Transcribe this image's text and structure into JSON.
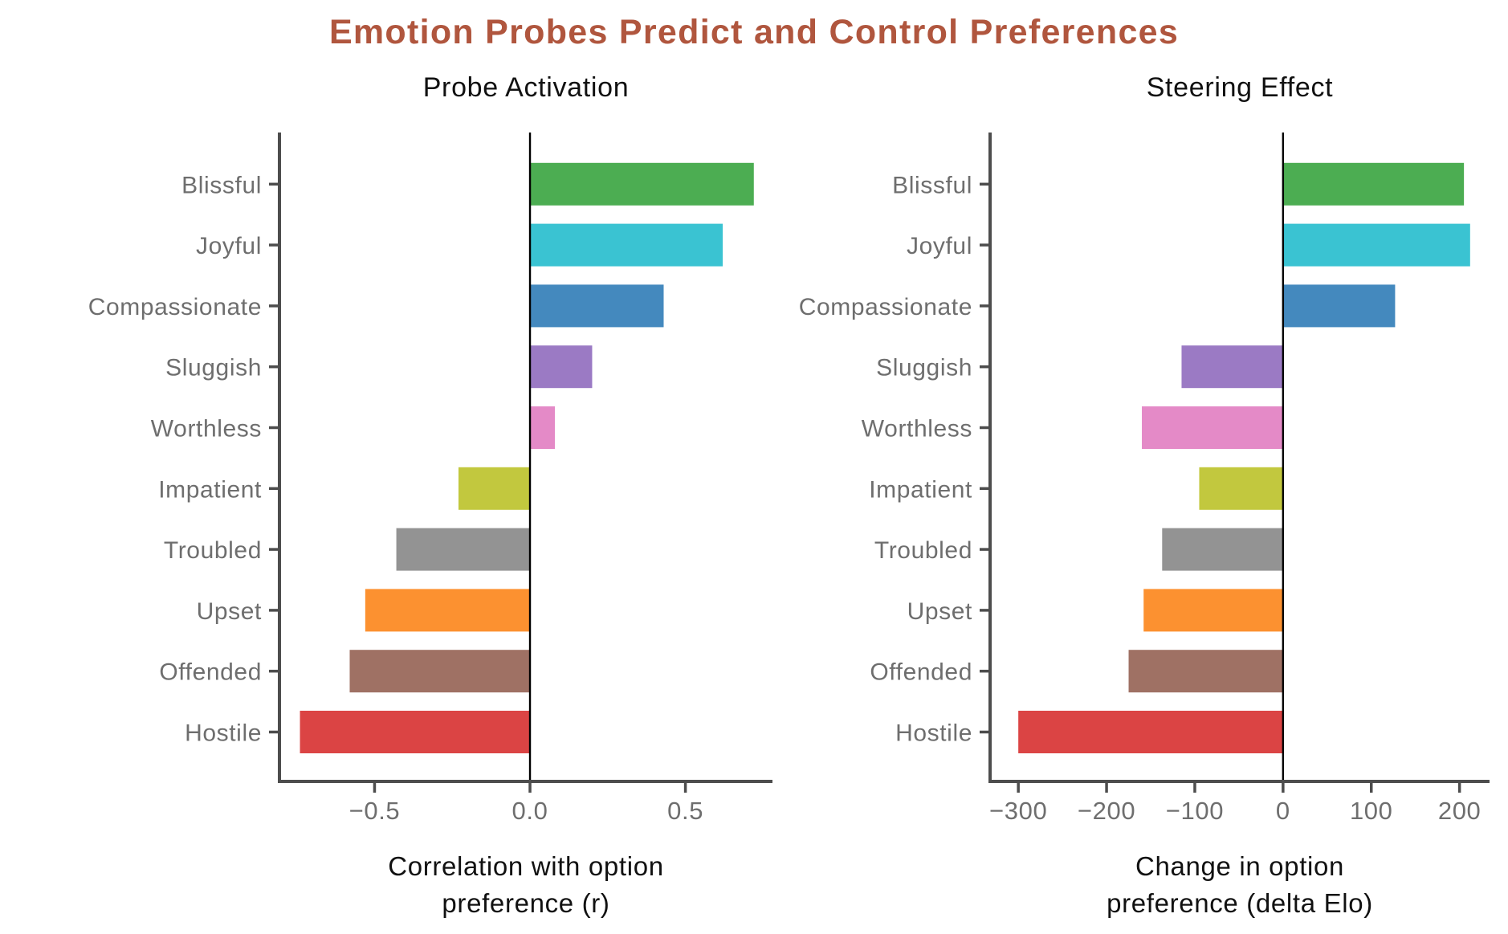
{
  "title": {
    "text": "Emotion Probes Predict and Control Preferences",
    "color": "#B0563E"
  },
  "chart_data": [
    {
      "type": "bar",
      "orientation": "horizontal",
      "title": "Probe Activation",
      "xlabel_lines": [
        "Correlation with option",
        "preference (r)"
      ],
      "xlabel": "Correlation with option preference (r)",
      "categories": [
        "Blissful",
        "Joyful",
        "Compassionate",
        "Sluggish",
        "Worthless",
        "Impatient",
        "Troubled",
        "Upset",
        "Offended",
        "Hostile"
      ],
      "values": [
        0.72,
        0.62,
        0.43,
        0.2,
        0.08,
        -0.23,
        -0.43,
        -0.53,
        -0.58,
        -0.74
      ],
      "xlim": [
        -0.806,
        0.78
      ],
      "xticks": [
        {
          "v": -0.5,
          "label": "−0.5"
        },
        {
          "v": 0.0,
          "label": "0.0"
        },
        {
          "v": 0.5,
          "label": "0.5"
        }
      ],
      "zero_line": true,
      "grid": false,
      "legend": "none"
    },
    {
      "type": "bar",
      "orientation": "horizontal",
      "title": "Steering Effect",
      "xlabel_lines": [
        "Change in option",
        "preference (delta Elo)"
      ],
      "xlabel": "Change in option preference (delta Elo)",
      "categories": [
        "Blissful",
        "Joyful",
        "Compassionate",
        "Sluggish",
        "Worthless",
        "Impatient",
        "Troubled",
        "Upset",
        "Offended",
        "Hostile"
      ],
      "values": [
        205,
        212,
        127,
        -115,
        -160,
        -95,
        -137,
        -158,
        -175,
        -300
      ],
      "xlim": [
        -332,
        234
      ],
      "xticks": [
        {
          "v": -300,
          "label": "−300"
        },
        {
          "v": -200,
          "label": "−200"
        },
        {
          "v": -100,
          "label": "−100"
        },
        {
          "v": 0,
          "label": "0"
        },
        {
          "v": 100,
          "label": "100"
        },
        {
          "v": 200,
          "label": "200"
        }
      ],
      "zero_line": true,
      "grid": false,
      "legend": "none"
    }
  ],
  "palette": {
    "Blissful": "#4CAD52",
    "Joyful": "#3AC3D2",
    "Compassionate": "#4489BE",
    "Sluggish": "#9B7AC4",
    "Worthless": "#E48AC7",
    "Impatient": "#C2C83E",
    "Troubled": "#939393",
    "Upset": "#FC9130",
    "Offended": "#9F7164",
    "Hostile": "#DB4444"
  },
  "style": {
    "label_color": "#6E6E6E",
    "tick_label_color": "#6E6E6E",
    "axis_color": "#4D4D4D",
    "zero_line_color": "#000000",
    "axis_label_color": "#111111",
    "subtitle_color": "#111111",
    "background": "#FFFFFF"
  }
}
